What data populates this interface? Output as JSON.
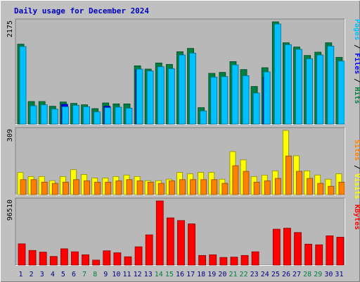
{
  "chart_data": {
    "type": "bar",
    "title": "Daily usage for December 2024",
    "categories": [
      "1",
      "2",
      "3",
      "4",
      "5",
      "6",
      "7",
      "8",
      "9",
      "10",
      "11",
      "12",
      "13",
      "14",
      "15",
      "16",
      "17",
      "18",
      "19",
      "20",
      "21",
      "22",
      "23",
      "24",
      "25",
      "26",
      "27",
      "28",
      "29",
      "30",
      "31"
    ],
    "weekend_days": [
      "7",
      "8",
      "14",
      "15",
      "21",
      "22",
      "28",
      "29"
    ],
    "panels": [
      {
        "id": "hits",
        "max_label": "2175",
        "ylim": [
          0,
          2175
        ],
        "legend": [
          "Pages",
          "Files",
          "Hits"
        ],
        "series": [
          {
            "name": "Hits",
            "color": "#008040",
            "values": [
              1700,
              480,
              480,
              380,
              470,
              440,
              410,
              330,
              450,
              430,
              430,
              1240,
              1170,
              1300,
              1270,
              1540,
              1610,
              350,
              1080,
              1100,
              1330,
              1160,
              800,
              1200,
              2175,
              1730,
              1640,
              1460,
              1530,
              1730,
              1420
            ]
          },
          {
            "name": "Files",
            "color": "#00c0ff",
            "values": [
              1650,
              390,
              410,
              320,
              370,
              400,
              370,
              260,
              350,
              360,
              340,
              1170,
              1130,
              1220,
              1180,
              1470,
              1510,
              280,
              1000,
              1010,
              1260,
              1030,
              660,
              1110,
              2130,
              1690,
              1590,
              1390,
              1470,
              1660,
              1340
            ]
          },
          {
            "name": "Pages",
            "color": "#0000ff",
            "values": [
              0,
              0,
              0,
              0,
              420,
              0,
              0,
              0,
              380,
              0,
              0,
              1160,
              0,
              0,
              0,
              0,
              0,
              0,
              0,
              0,
              0,
              0,
              0,
              1000,
              0,
              0,
              0,
              0,
              0,
              0,
              0
            ]
          }
        ]
      },
      {
        "id": "visits",
        "max_label": "309",
        "ylim": [
          0,
          309
        ],
        "legend": [
          "Sites",
          "Visits"
        ],
        "series": [
          {
            "name": "Visits",
            "color": "#ffff00",
            "values": [
              107,
              87,
              87,
              67,
              87,
              120,
              97,
              80,
              80,
              87,
              94,
              87,
              67,
              67,
              74,
              107,
              100,
              107,
              107,
              74,
              207,
              167,
              87,
              94,
              114,
              309,
              187,
              114,
              94,
              74,
              100
            ]
          },
          {
            "name": "Sites",
            "color": "#ff8000",
            "values": [
              72,
              72,
              60,
              54,
              60,
              72,
              66,
              60,
              60,
              66,
              72,
              66,
              60,
              54,
              66,
              72,
              72,
              72,
              72,
              54,
              139,
              112,
              60,
              66,
              78,
              186,
              112,
              78,
              54,
              40,
              60
            ]
          }
        ]
      },
      {
        "id": "kbytes",
        "max_label": "96510",
        "ylim": [
          0,
          96510
        ],
        "legend": [
          "KBytes"
        ],
        "series": [
          {
            "name": "KBytes",
            "color": "#ff0000",
            "values": [
              32000,
              22000,
              19500,
              13000,
              24500,
              20000,
              15500,
              7500,
              21500,
              18500,
              12500,
              27500,
              45500,
              96510,
              71000,
              67000,
              62000,
              14500,
              15500,
              11500,
              12000,
              14500,
              20000,
              0,
              54000,
              55500,
              49000,
              31500,
              30500,
              44000,
              42000
            ]
          }
        ]
      }
    ]
  }
}
